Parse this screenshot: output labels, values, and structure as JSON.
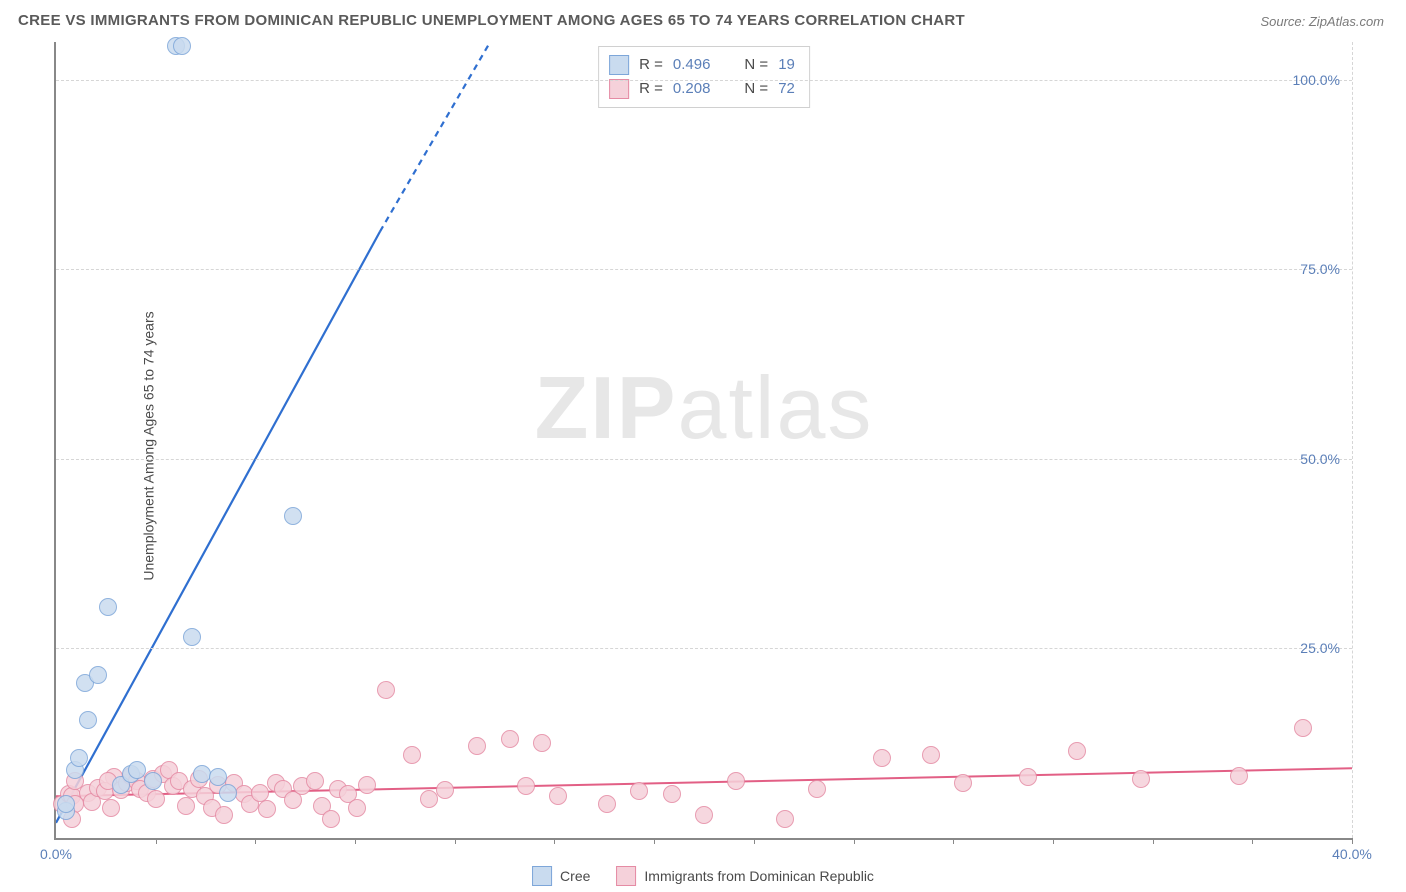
{
  "title": "CREE VS IMMIGRANTS FROM DOMINICAN REPUBLIC UNEMPLOYMENT AMONG AGES 65 TO 74 YEARS CORRELATION CHART",
  "source": "Source: ZipAtlas.com",
  "ylabel": "Unemployment Among Ages 65 to 74 years",
  "watermark_bold": "ZIP",
  "watermark_rest": "atlas",
  "chart": {
    "type": "scatter",
    "xlim": [
      0,
      40
    ],
    "ylim": [
      0,
      105
    ],
    "yticks": [
      25,
      50,
      75,
      100
    ],
    "ytick_labels": [
      "25.0%",
      "50.0%",
      "75.0%",
      "100.0%"
    ],
    "xtick_labels": [
      "0.0%",
      "40.0%"
    ],
    "x_minor_ticks": [
      1,
      2,
      3,
      4,
      5,
      6,
      7,
      8,
      9,
      10,
      11,
      12,
      13
    ],
    "x_minor_spacing": 3.0769,
    "grid_color": "#d6d6d6",
    "axis_color": "#888888",
    "tick_label_color": "#5b7fb8",
    "background_color": "#ffffff"
  },
  "series": {
    "cree": {
      "label": "Cree",
      "R": "0.496",
      "N": "19",
      "marker_fill": "#c9dbef",
      "marker_stroke": "#7da6d9",
      "marker_radius": 8,
      "trend_color": "#2f6fd0",
      "trend_width": 2.2,
      "trend": {
        "x1": 0,
        "y1": 2,
        "x2": 10,
        "y2": 80
      },
      "trend_dash_ext": {
        "x1": 10,
        "y1": 80,
        "x2": 13.4,
        "y2": 105
      },
      "points": [
        [
          0.3,
          3.5
        ],
        [
          0.3,
          4.5
        ],
        [
          0.6,
          9
        ],
        [
          0.7,
          10.5
        ],
        [
          0.9,
          20.5
        ],
        [
          1.0,
          15.5
        ],
        [
          1.3,
          21.5
        ],
        [
          1.6,
          30.5
        ],
        [
          3.7,
          104.5
        ],
        [
          3.9,
          104.5
        ],
        [
          2.0,
          7
        ],
        [
          2.3,
          8.5
        ],
        [
          2.5,
          9
        ],
        [
          3.0,
          7.5
        ],
        [
          4.2,
          26.5
        ],
        [
          4.5,
          8.5
        ],
        [
          5.0,
          8
        ],
        [
          5.3,
          6
        ],
        [
          7.3,
          42.5
        ]
      ]
    },
    "dominican": {
      "label": "Immigrants from Dominican Republic",
      "R": "0.208",
      "N": "72",
      "marker_fill": "#f5d1da",
      "marker_stroke": "#e58ba4",
      "marker_radius": 8,
      "trend_color": "#e25f85",
      "trend_width": 2,
      "trend": {
        "x1": 0,
        "y1": 5.5,
        "x2": 40,
        "y2": 9.2
      },
      "points": [
        [
          0.2,
          4.5
        ],
        [
          0.4,
          5.8
        ],
        [
          0.5,
          5.5
        ],
        [
          0.6,
          4.5
        ],
        [
          0.6,
          7.5
        ],
        [
          0.5,
          2.5
        ],
        [
          1.0,
          6
        ],
        [
          1.1,
          4.8
        ],
        [
          1.3,
          6.6
        ],
        [
          1.5,
          6.2
        ],
        [
          1.7,
          4
        ],
        [
          1.8,
          8
        ],
        [
          1.6,
          7.5
        ],
        [
          2.0,
          6.3
        ],
        [
          2.2,
          7.2
        ],
        [
          2.3,
          8.2
        ],
        [
          2.5,
          7.5
        ],
        [
          2.6,
          6.5
        ],
        [
          2.8,
          6
        ],
        [
          3.0,
          7.8
        ],
        [
          3.1,
          5.2
        ],
        [
          3.3,
          8.5
        ],
        [
          3.5,
          9
        ],
        [
          3.6,
          6.8
        ],
        [
          3.8,
          7.5
        ],
        [
          4.0,
          4.2
        ],
        [
          4.2,
          6.5
        ],
        [
          4.4,
          7.8
        ],
        [
          4.6,
          5.5
        ],
        [
          4.8,
          4
        ],
        [
          5.0,
          7
        ],
        [
          5.2,
          3
        ],
        [
          5.5,
          7.2
        ],
        [
          5.8,
          5.8
        ],
        [
          6.0,
          4.5
        ],
        [
          6.3,
          6
        ],
        [
          6.5,
          3.8
        ],
        [
          6.8,
          7.3
        ],
        [
          7.0,
          6.5
        ],
        [
          7.3,
          5
        ],
        [
          7.6,
          6.8
        ],
        [
          8.0,
          7.5
        ],
        [
          8.2,
          4.2
        ],
        [
          8.5,
          2.5
        ],
        [
          8.7,
          6.4
        ],
        [
          9.0,
          5.8
        ],
        [
          9.3,
          4
        ],
        [
          9.6,
          7
        ],
        [
          10.2,
          19.5
        ],
        [
          11.0,
          11
        ],
        [
          11.5,
          5.2
        ],
        [
          12.0,
          6.3
        ],
        [
          13.0,
          12.2
        ],
        [
          14.0,
          13
        ],
        [
          14.5,
          6.8
        ],
        [
          15.0,
          12.5
        ],
        [
          15.5,
          5.5
        ],
        [
          17.0,
          4.5
        ],
        [
          18.0,
          6.2
        ],
        [
          19.0,
          5.8
        ],
        [
          20.0,
          3
        ],
        [
          21.0,
          7.5
        ],
        [
          22.5,
          2.5
        ],
        [
          23.5,
          6.5
        ],
        [
          25.5,
          10.5
        ],
        [
          27.0,
          11
        ],
        [
          28.0,
          7.2
        ],
        [
          30.0,
          8
        ],
        [
          31.5,
          11.5
        ],
        [
          33.5,
          7.8
        ],
        [
          36.5,
          8.2
        ],
        [
          38.5,
          14.5
        ]
      ]
    }
  },
  "legend_stats": {
    "R_label": "R =",
    "N_label": "N ="
  },
  "bottom_legend": {
    "items": [
      "cree",
      "dominican"
    ]
  }
}
